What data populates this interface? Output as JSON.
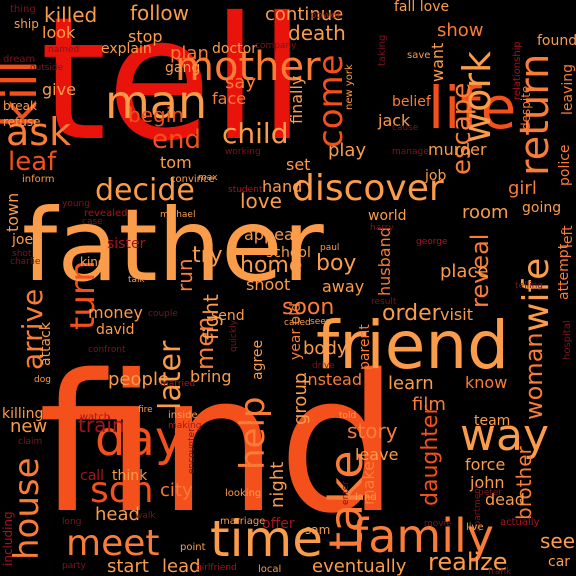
{
  "background_color": "#000000",
  "palette": {
    "red": "#e8140c",
    "orange_red": "#f3501c",
    "orange": "#fa7c36",
    "light_orange": "#fb9c4a",
    "salmon": "#f66a3a",
    "dark_red": "#a8141c",
    "dim_red": "#7a1420",
    "faint": "#5a1418"
  },
  "words": [
    {
      "text": "tell",
      "color": "#e8140c"
    },
    {
      "text": "father",
      "color": "#fb9c4a"
    },
    {
      "text": "find",
      "color": "#f3501c"
    },
    {
      "text": "friend",
      "color": "#fb9c4a"
    },
    {
      "text": "mother",
      "color": "#fa7c36"
    },
    {
      "text": "man",
      "color": "#fb9c4a"
    },
    {
      "text": "life",
      "color": "#f3501c"
    },
    {
      "text": "kill",
      "color": "#f3501c"
    },
    {
      "text": "ask",
      "color": "#fa7c36"
    },
    {
      "text": "come",
      "color": "#f3501c"
    },
    {
      "text": "work",
      "color": "#fb9c4a"
    },
    {
      "text": "return",
      "color": "#fa7c36"
    },
    {
      "text": "discover",
      "color": "#fb9c4a"
    },
    {
      "text": "decide",
      "color": "#fb9c4a"
    },
    {
      "text": "child",
      "color": "#fb9c4a"
    },
    {
      "text": "end",
      "color": "#f3501c"
    },
    {
      "text": "day",
      "color": "#f3501c"
    },
    {
      "text": "time",
      "color": "#fb9c4a"
    },
    {
      "text": "meet",
      "color": "#fa7c36"
    },
    {
      "text": "family",
      "color": "#fa7c36"
    },
    {
      "text": "son",
      "color": "#f3501c"
    },
    {
      "text": "house",
      "color": "#fa7c36"
    },
    {
      "text": "take",
      "color": "#fa7c36"
    },
    {
      "text": "way",
      "color": "#fb9c4a"
    },
    {
      "text": "help",
      "color": "#fa7c36"
    },
    {
      "text": "wife",
      "color": "#fb9c4a"
    },
    {
      "text": "woman",
      "color": "#fa7c36"
    },
    {
      "text": "later",
      "color": "#fb9c4a"
    },
    {
      "text": "men",
      "color": "#fa7c36"
    },
    {
      "text": "turn",
      "color": "#f3501c"
    },
    {
      "text": "arrive",
      "color": "#fa7c36"
    },
    {
      "text": "escape",
      "color": "#fa7c36"
    },
    {
      "text": "begin",
      "color": "#f3501c"
    },
    {
      "text": "leaf",
      "color": "#f3501c"
    },
    {
      "text": "killed",
      "color": "#fb9c4a"
    },
    {
      "text": "follow",
      "color": "#fb9c4a"
    },
    {
      "text": "continue",
      "color": "#fb9c4a"
    },
    {
      "text": "death",
      "color": "#fb9c4a"
    },
    {
      "text": "show",
      "color": "#fa7c36"
    },
    {
      "text": "want",
      "color": "#fb9c4a"
    },
    {
      "text": "plan",
      "color": "#fa7c36"
    },
    {
      "text": "girl",
      "color": "#fa7c36"
    },
    {
      "text": "boy",
      "color": "#fb9c4a"
    },
    {
      "text": "home",
      "color": "#fb9c4a"
    },
    {
      "text": "try",
      "color": "#fb9c4a"
    },
    {
      "text": "love",
      "color": "#fb9c4a"
    },
    {
      "text": "reveal",
      "color": "#fa7c36"
    },
    {
      "text": "order",
      "color": "#fb9c4a"
    },
    {
      "text": "soon",
      "color": "#fa7c36"
    },
    {
      "text": "fight",
      "color": "#fb9c4a"
    },
    {
      "text": "run",
      "color": "#fa7c36"
    },
    {
      "text": "room",
      "color": "#fb9c4a"
    },
    {
      "text": "place",
      "color": "#fb9c4a"
    },
    {
      "text": "learn",
      "color": "#fb9c4a"
    },
    {
      "text": "body",
      "color": "#fb9c4a"
    },
    {
      "text": "story",
      "color": "#fa7c36"
    },
    {
      "text": "daughter",
      "color": "#f3501c"
    },
    {
      "text": "brother",
      "color": "#fa7c36"
    },
    {
      "text": "film",
      "color": "#fa7c36"
    },
    {
      "text": "new",
      "color": "#fb9c4a"
    },
    {
      "text": "see",
      "color": "#fb9c4a"
    },
    {
      "text": "realize",
      "color": "#fb9c4a"
    },
    {
      "text": "eventually",
      "color": "#fb9c4a"
    },
    {
      "text": "start",
      "color": "#fb9c4a"
    },
    {
      "text": "lead",
      "color": "#fb9c4a"
    },
    {
      "text": "head",
      "color": "#fb9c4a"
    },
    {
      "text": "city",
      "color": "#fa7c36"
    },
    {
      "text": "people",
      "color": "#fb9c4a"
    },
    {
      "text": "money",
      "color": "#fb9c4a"
    },
    {
      "text": "town",
      "color": "#fb9c4a"
    },
    {
      "text": "train",
      "color": "#a8141c"
    },
    {
      "text": "hand",
      "color": "#fb9c4a"
    },
    {
      "text": "stop",
      "color": "#fb9c4a"
    },
    {
      "text": "look",
      "color": "#fb9c4a"
    },
    {
      "text": "give",
      "color": "#fb9c4a"
    },
    {
      "text": "say",
      "color": "#fa7c36"
    },
    {
      "text": "face",
      "color": "#fa7c36"
    },
    {
      "text": "explain",
      "color": "#fb9c4a"
    },
    {
      "text": "gang",
      "color": "#fb9c4a"
    },
    {
      "text": "doctor",
      "color": "#fb9c4a"
    },
    {
      "text": "finally",
      "color": "#fb9c4a"
    },
    {
      "text": "play",
      "color": "#fb9c4a"
    },
    {
      "text": "tom",
      "color": "#fb9c4a"
    },
    {
      "text": "set",
      "color": "#fb9c4a"
    },
    {
      "text": "murder",
      "color": "#fb9c4a"
    },
    {
      "text": "jack",
      "color": "#fb9c4a"
    },
    {
      "text": "belief",
      "color": "#fa7c36"
    },
    {
      "text": "fall love",
      "color": "#fb9c4a"
    },
    {
      "text": "found",
      "color": "#fb9c4a"
    },
    {
      "text": "police",
      "color": "#fa7c36"
    },
    {
      "text": "leaving",
      "color": "#fa7c36"
    },
    {
      "text": "job",
      "color": "#fb9c4a"
    },
    {
      "text": "going",
      "color": "#fb9c4a"
    },
    {
      "text": "left",
      "color": "#fa7c36"
    },
    {
      "text": "attempt",
      "color": "#fa7c36"
    },
    {
      "text": "appear",
      "color": "#fb9c4a"
    },
    {
      "text": "school",
      "color": "#fb9c4a"
    },
    {
      "text": "shoot",
      "color": "#fb9c4a"
    },
    {
      "text": "away",
      "color": "#fb9c4a"
    },
    {
      "text": "sister",
      "color": "#a8141c"
    },
    {
      "text": "husband",
      "color": "#fa7c36"
    },
    {
      "text": "world",
      "color": "#fb9c4a"
    },
    {
      "text": "parent",
      "color": "#fa7c36"
    },
    {
      "text": "visit",
      "color": "#fb9c4a"
    },
    {
      "text": "know",
      "color": "#fa7c36"
    },
    {
      "text": "instead",
      "color": "#fa7c36"
    },
    {
      "text": "bring",
      "color": "#fb9c4a"
    },
    {
      "text": "agree",
      "color": "#fb9c4a"
    },
    {
      "text": "send",
      "color": "#fb9c4a"
    },
    {
      "text": "david",
      "color": "#fb9c4a"
    },
    {
      "text": "attack",
      "color": "#fb9c4a"
    },
    {
      "text": "night",
      "color": "#fb9c4a"
    },
    {
      "text": "group",
      "color": "#fb9c4a"
    },
    {
      "text": "year old",
      "color": "#fa7c36"
    },
    {
      "text": "leave",
      "color": "#fb9c4a"
    },
    {
      "text": "make",
      "color": "#fa7c36"
    },
    {
      "text": "force",
      "color": "#fb9c4a"
    },
    {
      "text": "john",
      "color": "#fb9c4a"
    },
    {
      "text": "dead",
      "color": "#fb9c4a"
    },
    {
      "text": "team",
      "color": "#fb9c4a"
    },
    {
      "text": "call",
      "color": "#a8141c"
    },
    {
      "text": "think",
      "color": "#fb9c4a"
    },
    {
      "text": "offer",
      "color": "#a8141c"
    },
    {
      "text": "sam",
      "color": "#fb9c4a"
    },
    {
      "text": "car",
      "color": "#fb9c4a"
    },
    {
      "text": "killing",
      "color": "#fb9c4a"
    },
    {
      "text": "joe",
      "color": "#fb9c4a"
    },
    {
      "text": "king",
      "color": "#fb9c4a"
    },
    {
      "text": "break",
      "color": "#fb9c4a"
    },
    {
      "text": "refuse",
      "color": "#fb9c4a"
    },
    {
      "text": "inform",
      "color": "#fb9c4a"
    },
    {
      "text": "convince",
      "color": "#fb9c4a"
    },
    {
      "text": "thing",
      "color": "#7a1420"
    },
    {
      "text": "ship",
      "color": "#fb9c4a"
    },
    {
      "text": "power",
      "color": "#a8141c"
    },
    {
      "text": "taking",
      "color": "#7a1420"
    },
    {
      "text": "save",
      "color": "#fb9c4a"
    },
    {
      "text": "named",
      "color": "#7a1420"
    },
    {
      "text": "dream",
      "color": "#7a1420"
    },
    {
      "text": "company",
      "color": "#7a1420"
    },
    {
      "text": "new york",
      "color": "#fb9c4a"
    },
    {
      "text": "working",
      "color": "#7a1420"
    },
    {
      "text": "manage",
      "color": "#7a1420"
    },
    {
      "text": "cause",
      "color": "#7a1420"
    },
    {
      "text": "despite",
      "color": "#fa7c36"
    },
    {
      "text": "relationship",
      "color": "#a8141c"
    },
    {
      "text": "max",
      "color": "#fb9c4a"
    },
    {
      "text": "student",
      "color": "#a8141c"
    },
    {
      "text": "young",
      "color": "#7a1420"
    },
    {
      "text": "revealed",
      "color": "#a8141c"
    },
    {
      "text": "michael",
      "color": "#fb9c4a"
    },
    {
      "text": "harry",
      "color": "#7a1420"
    },
    {
      "text": "paul",
      "color": "#fb9c4a"
    },
    {
      "text": "george",
      "color": "#a8141c"
    },
    {
      "text": "charlie",
      "color": "#7a1420"
    },
    {
      "text": "shot",
      "color": "#7a1420"
    },
    {
      "text": "talk",
      "color": "#fb9c4a"
    },
    {
      "text": "case",
      "color": "#7a1420"
    },
    {
      "text": "telling",
      "color": "#7a1420"
    },
    {
      "text": "result",
      "color": "#7a1420"
    },
    {
      "text": "couple",
      "color": "#7a1420"
    },
    {
      "text": "called",
      "color": "#fb9c4a"
    },
    {
      "text": "seen",
      "color": "#fb9c4a"
    },
    {
      "text": "quickly",
      "color": "#7a1420"
    },
    {
      "text": "drive",
      "color": "#7a1420"
    },
    {
      "text": "confront",
      "color": "#7a1420"
    },
    {
      "text": "married",
      "color": "#a8141c"
    },
    {
      "text": "hospital",
      "color": "#7a1420"
    },
    {
      "text": "dog",
      "color": "#fb9c4a"
    },
    {
      "text": "watch",
      "color": "#a8141c"
    },
    {
      "text": "inside",
      "color": "#fb9c4a"
    },
    {
      "text": "making",
      "color": "#a8141c"
    },
    {
      "text": "fire",
      "color": "#fb9c4a"
    },
    {
      "text": "told",
      "color": "#fb9c4a"
    },
    {
      "text": "claim",
      "color": "#7a1420"
    },
    {
      "text": "encounter",
      "color": "#7a1420"
    },
    {
      "text": "enter",
      "color": "#7a1420"
    },
    {
      "text": "land",
      "color": "#fb9c4a"
    },
    {
      "text": "looking",
      "color": "#fb9c4a"
    },
    {
      "text": "apartment",
      "color": "#7a1420"
    },
    {
      "text": "peter",
      "color": "#7a1420"
    },
    {
      "text": "including",
      "color": "#a8141c"
    },
    {
      "text": "long",
      "color": "#7a1420"
    },
    {
      "text": "walk",
      "color": "#7a1420"
    },
    {
      "text": "marriage",
      "color": "#fb9c4a"
    },
    {
      "text": "point",
      "color": "#fb9c4a"
    },
    {
      "text": "movie",
      "color": "#7a1420"
    },
    {
      "text": "live",
      "color": "#fb9c4a"
    },
    {
      "text": "actually",
      "color": "#a8141c"
    },
    {
      "text": "party",
      "color": "#7a1420"
    },
    {
      "text": "girlfriend",
      "color": "#a8141c"
    },
    {
      "text": "local",
      "color": "#fb9c4a"
    },
    {
      "text": "frank",
      "color": "#7a1420"
    },
    {
      "text": "outside",
      "color": "#7a1420"
    }
  ]
}
